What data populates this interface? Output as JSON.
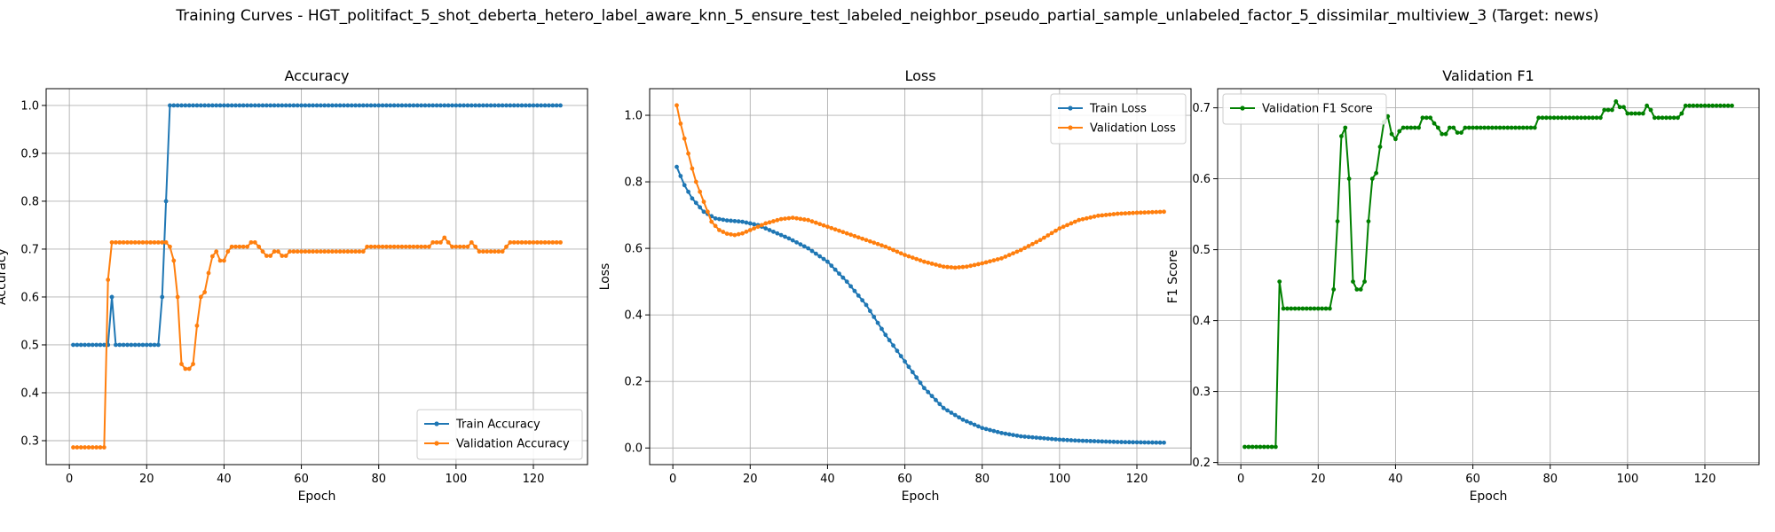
{
  "figure": {
    "suptitle": "Training Curves - HGT_politifact_5_shot_deberta_hetero_label_aware_knn_5_ensure_test_labeled_neighbor_pseudo_partial_sample_unlabeled_factor_5_dissimilar_multiview_3 (Target: news)"
  },
  "colors": {
    "blue": "#1f77b4",
    "orange": "#ff7f0e",
    "green": "#008000",
    "grid": "#b0b0b0"
  },
  "chart_data": [
    {
      "type": "line",
      "title": "Accuracy",
      "xlabel": "Epoch",
      "ylabel": "Accuracy",
      "xlim": [
        -6,
        134
      ],
      "ylim": [
        0.25,
        1.035
      ],
      "xticks": [
        0,
        20,
        40,
        60,
        80,
        100,
        120
      ],
      "yticks": [
        0.3,
        0.4,
        0.5,
        0.6,
        0.7,
        0.8,
        0.9,
        1.0
      ],
      "ytick_labels": [
        "0.3",
        "0.4",
        "0.5",
        "0.6",
        "0.7",
        "0.8",
        "0.9",
        "1.0"
      ],
      "grid": true,
      "legend_position": "lower-right",
      "series": [
        {
          "name": "Train Accuracy",
          "color": "#1f77b4",
          "keypoints": [
            [
              1,
              0.5
            ],
            [
              9,
              0.5
            ],
            [
              10,
              0.5
            ],
            [
              11,
              0.6
            ],
            [
              12,
              0.5
            ],
            [
              23,
              0.5
            ],
            [
              24,
              0.6
            ],
            [
              25,
              0.8
            ],
            [
              26,
              1.0
            ],
            [
              127,
              1.0
            ]
          ]
        },
        {
          "name": "Validation Accuracy",
          "color": "#ff7f0e",
          "keypoints": [
            [
              1,
              0.286
            ],
            [
              9,
              0.286
            ],
            [
              10,
              0.636
            ],
            [
              11,
              0.714
            ],
            [
              24,
              0.714
            ],
            [
              25,
              0.714
            ],
            [
              26,
              0.705
            ],
            [
              27,
              0.676
            ],
            [
              28,
              0.6
            ],
            [
              29,
              0.46
            ],
            [
              30,
              0.45
            ],
            [
              31,
              0.45
            ],
            [
              32,
              0.46
            ],
            [
              33,
              0.54
            ],
            [
              34,
              0.6
            ],
            [
              35,
              0.61
            ],
            [
              36,
              0.65
            ],
            [
              37,
              0.685
            ],
            [
              38,
              0.695
            ],
            [
              39,
              0.676
            ],
            [
              40,
              0.676
            ],
            [
              41,
              0.695
            ],
            [
              42,
              0.705
            ],
            [
              46,
              0.705
            ],
            [
              47,
              0.714
            ],
            [
              48,
              0.714
            ],
            [
              49,
              0.705
            ],
            [
              50,
              0.695
            ],
            [
              51,
              0.686
            ],
            [
              52,
              0.686
            ],
            [
              53,
              0.695
            ],
            [
              54,
              0.695
            ],
            [
              55,
              0.686
            ],
            [
              56,
              0.686
            ],
            [
              57,
              0.695
            ],
            [
              76,
              0.695
            ],
            [
              77,
              0.705
            ],
            [
              93,
              0.705
            ],
            [
              94,
              0.714
            ],
            [
              96,
              0.714
            ],
            [
              97,
              0.724
            ],
            [
              98,
              0.714
            ],
            [
              99,
              0.705
            ],
            [
              103,
              0.705
            ],
            [
              104,
              0.714
            ],
            [
              105,
              0.705
            ],
            [
              106,
              0.695
            ],
            [
              112,
              0.695
            ],
            [
              113,
              0.705
            ],
            [
              114,
              0.714
            ],
            [
              127,
              0.714
            ]
          ]
        }
      ]
    },
    {
      "type": "line",
      "title": "Loss",
      "xlabel": "Epoch",
      "ylabel": "Loss",
      "xlim": [
        -6,
        134
      ],
      "ylim": [
        -0.05,
        1.08
      ],
      "xticks": [
        0,
        20,
        40,
        60,
        80,
        100,
        120
      ],
      "yticks": [
        0.0,
        0.2,
        0.4,
        0.6,
        0.8,
        1.0
      ],
      "ytick_labels": [
        "0.0",
        "0.2",
        "0.4",
        "0.6",
        "0.8",
        "1.0"
      ],
      "grid": true,
      "legend_position": "top-right",
      "series": [
        {
          "name": "Train Loss",
          "color": "#1f77b4",
          "keypoints": [
            [
              1,
              0.845
            ],
            [
              3,
              0.79
            ],
            [
              5,
              0.75
            ],
            [
              8,
              0.71
            ],
            [
              11,
              0.69
            ],
            [
              14,
              0.684
            ],
            [
              18,
              0.68
            ],
            [
              22,
              0.67
            ],
            [
              26,
              0.65
            ],
            [
              30,
              0.63
            ],
            [
              35,
              0.6
            ],
            [
              40,
              0.56
            ],
            [
              45,
              0.5
            ],
            [
              50,
              0.43
            ],
            [
              55,
              0.34
            ],
            [
              60,
              0.26
            ],
            [
              65,
              0.18
            ],
            [
              70,
              0.12
            ],
            [
              75,
              0.085
            ],
            [
              80,
              0.06
            ],
            [
              85,
              0.045
            ],
            [
              90,
              0.035
            ],
            [
              95,
              0.03
            ],
            [
              100,
              0.025
            ],
            [
              105,
              0.022
            ],
            [
              110,
              0.02
            ],
            [
              115,
              0.018
            ],
            [
              120,
              0.017
            ],
            [
              127,
              0.016
            ]
          ]
        },
        {
          "name": "Validation Loss",
          "color": "#ff7f0e",
          "keypoints": [
            [
              1,
              1.03
            ],
            [
              2,
              0.975
            ],
            [
              3,
              0.93
            ],
            [
              4,
              0.885
            ],
            [
              5,
              0.84
            ],
            [
              6,
              0.8
            ],
            [
              7,
              0.77
            ],
            [
              8,
              0.74
            ],
            [
              9,
              0.71
            ],
            [
              10,
              0.68
            ],
            [
              12,
              0.655
            ],
            [
              14,
              0.644
            ],
            [
              16,
              0.64
            ],
            [
              18,
              0.645
            ],
            [
              20,
              0.655
            ],
            [
              24,
              0.675
            ],
            [
              28,
              0.688
            ],
            [
              31,
              0.692
            ],
            [
              35,
              0.685
            ],
            [
              40,
              0.665
            ],
            [
              45,
              0.645
            ],
            [
              50,
              0.625
            ],
            [
              55,
              0.605
            ],
            [
              60,
              0.58
            ],
            [
              65,
              0.56
            ],
            [
              70,
              0.545
            ],
            [
              73,
              0.542
            ],
            [
              76,
              0.545
            ],
            [
              80,
              0.555
            ],
            [
              85,
              0.57
            ],
            [
              90,
              0.595
            ],
            [
              95,
              0.625
            ],
            [
              100,
              0.66
            ],
            [
              105,
              0.685
            ],
            [
              110,
              0.698
            ],
            [
              115,
              0.704
            ],
            [
              120,
              0.707
            ],
            [
              127,
              0.71
            ]
          ]
        }
      ]
    },
    {
      "type": "line",
      "title": "Validation F1",
      "xlabel": "Epoch",
      "ylabel": "F1 Score",
      "xlim": [
        -6,
        134
      ],
      "ylim": [
        0.197,
        0.727
      ],
      "xticks": [
        0,
        20,
        40,
        60,
        80,
        100,
        120
      ],
      "yticks": [
        0.2,
        0.3,
        0.4,
        0.5,
        0.6,
        0.7
      ],
      "ytick_labels": [
        "0.2",
        "0.3",
        "0.4",
        "0.5",
        "0.6",
        "0.7"
      ],
      "grid": true,
      "legend_position": "top-left",
      "series": [
        {
          "name": "Validation F1 Score",
          "color": "#008000",
          "keypoints": [
            [
              1,
              0.222
            ],
            [
              9,
              0.222
            ],
            [
              10,
              0.455
            ],
            [
              11,
              0.417
            ],
            [
              23,
              0.417
            ],
            [
              24,
              0.444
            ],
            [
              25,
              0.54
            ],
            [
              26,
              0.66
            ],
            [
              27,
              0.672
            ],
            [
              28,
              0.6
            ],
            [
              29,
              0.455
            ],
            [
              30,
              0.444
            ],
            [
              31,
              0.444
            ],
            [
              32,
              0.455
            ],
            [
              33,
              0.54
            ],
            [
              34,
              0.6
            ],
            [
              35,
              0.608
            ],
            [
              36,
              0.645
            ],
            [
              37,
              0.68
            ],
            [
              38,
              0.688
            ],
            [
              39,
              0.663
            ],
            [
              40,
              0.656
            ],
            [
              41,
              0.667
            ],
            [
              42,
              0.672
            ],
            [
              46,
              0.672
            ],
            [
              47,
              0.686
            ],
            [
              49,
              0.686
            ],
            [
              50,
              0.678
            ],
            [
              51,
              0.672
            ],
            [
              52,
              0.663
            ],
            [
              53,
              0.663
            ],
            [
              54,
              0.672
            ],
            [
              55,
              0.672
            ],
            [
              56,
              0.665
            ],
            [
              57,
              0.665
            ],
            [
              58,
              0.672
            ],
            [
              76,
              0.672
            ],
            [
              77,
              0.686
            ],
            [
              93,
              0.686
            ],
            [
              94,
              0.697
            ],
            [
              96,
              0.697
            ],
            [
              97,
              0.709
            ],
            [
              98,
              0.701
            ],
            [
              99,
              0.701
            ],
            [
              100,
              0.692
            ],
            [
              104,
              0.692
            ],
            [
              105,
              0.703
            ],
            [
              106,
              0.697
            ],
            [
              107,
              0.686
            ],
            [
              113,
              0.686
            ],
            [
              114,
              0.692
            ],
            [
              115,
              0.703
            ],
            [
              127,
              0.703
            ]
          ]
        }
      ]
    }
  ]
}
